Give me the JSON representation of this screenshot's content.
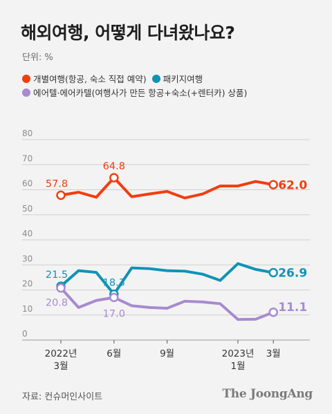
{
  "title": "해외여행, 어떻게 다녀왔나요?",
  "unit": "단위: %",
  "legend": [
    {
      "label": "개별여행(항공, 숙소 직접 예약)",
      "color": "#f23d0f"
    },
    {
      "label": "패키지여행",
      "color": "#0e93b6"
    },
    {
      "label": "에어텔·에어카텔(여행사가 만든 항공+숙소(+렌터카) 상품)",
      "color": "#a78ad0"
    }
  ],
  "source": "자료: 컨슈머인사이트",
  "brand": "The JoongAng",
  "chart_data": {
    "type": "line",
    "ylim": [
      0,
      80
    ],
    "yticks": [
      "0",
      "10",
      "20",
      "30",
      "40",
      "50",
      "60",
      "70",
      "80"
    ],
    "grid": true,
    "x_tick_labels": [
      {
        "index": 0,
        "lines": [
          "2022년",
          "3월"
        ]
      },
      {
        "index": 3,
        "lines": [
          "6월"
        ]
      },
      {
        "index": 6,
        "lines": [
          "9월"
        ]
      },
      {
        "index": 10,
        "lines": [
          "2023년",
          "1월"
        ]
      },
      {
        "index": 12,
        "lines": [
          "3월"
        ]
      }
    ],
    "series": [
      {
        "name": "개별여행(항공, 숙소 직접 예약)",
        "color": "#f23d0f",
        "values": [
          57.8,
          59,
          57,
          64.8,
          57.2,
          58.3,
          59.3,
          56.7,
          58.3,
          61.5,
          61.5,
          63.3,
          62.0
        ],
        "labels": [
          {
            "index": 0,
            "text": "57.8"
          },
          {
            "index": 3,
            "text": "64.8"
          },
          {
            "index": 12,
            "text": "62.0"
          }
        ]
      },
      {
        "name": "패키지여행",
        "color": "#0e93b6",
        "values": [
          21.5,
          27.7,
          27.0,
          18.3,
          28.8,
          28.5,
          27.7,
          27.5,
          26.3,
          23.8,
          30.5,
          28.2,
          26.9
        ],
        "labels": [
          {
            "index": 0,
            "text": "21.5"
          },
          {
            "index": 3,
            "text": "18.3"
          },
          {
            "index": 12,
            "text": "26.9"
          }
        ]
      },
      {
        "name": "에어텔·에어카텔(여행사가 만든 항공+숙소(+렌터카) 상품)",
        "color": "#a78ad0",
        "values": [
          20.8,
          13.0,
          15.8,
          17.0,
          13.7,
          13.0,
          12.7,
          15.5,
          15.2,
          14.5,
          8.2,
          8.3,
          11.1
        ],
        "labels": [
          {
            "index": 0,
            "text": "20.8"
          },
          {
            "index": 3,
            "text": "17.0"
          },
          {
            "index": 12,
            "text": "11.1"
          }
        ]
      }
    ]
  }
}
